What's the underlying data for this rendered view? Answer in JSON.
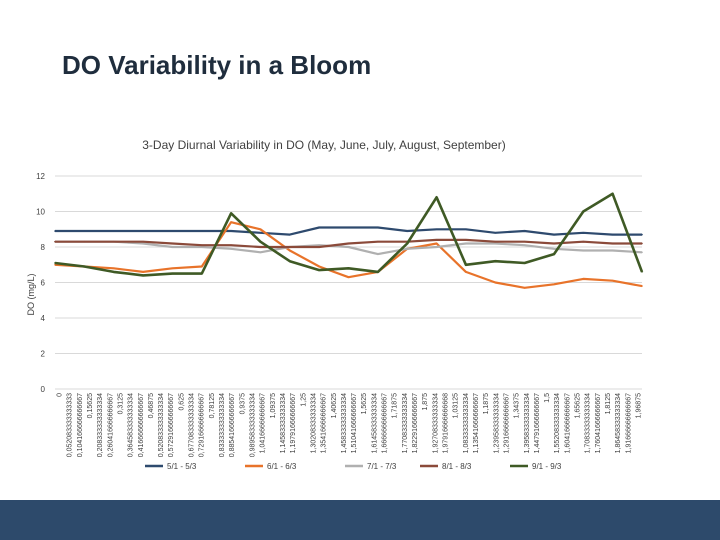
{
  "slide": {
    "title": "DO Variability in a Bloom"
  },
  "chart_data": {
    "type": "line",
    "title": "3-Day Diurnal Variability in DO (May, June, July, August, September)",
    "ylabel": "DO (mg/L)",
    "xlabel": "",
    "ylim": [
      0,
      12
    ],
    "yticks": [
      0,
      2,
      4,
      6,
      8,
      10,
      12
    ],
    "grid": true,
    "x_range": [
      0,
      2
    ],
    "x_tick_labels": [
      "0",
      "0,052083333333333",
      "0,104166666666667",
      "0,15625",
      "0,208333333333334",
      "0,260416666666667",
      "0,3125",
      "0,364583333333334",
      "0,416666666666667",
      "0,46875",
      "0,520833333333334",
      "0,572916666666667",
      "0,625",
      "0,677083333333334",
      "0,729166666666667",
      "0,78125",
      "0,833333333333334",
      "0,885416666666667",
      "0,9375",
      "0,989583333333334",
      "1,04166666666667",
      "1,09375",
      "1,14583333333334",
      "1,19791666666667",
      "1,25",
      "1,30208333333334",
      "1,35416666666667",
      "1,40625",
      "1,45833333333334",
      "1,51041666666667",
      "1,5625",
      "1,61458333333334",
      "1,66666666666667",
      "1,71875",
      "1,77083333333334",
      "1,82291666666667",
      "1,875",
      "1,92708333333334",
      "1,97916666666668",
      "1,03125",
      "1,08333333333334",
      "1,13541666666667",
      "1,1875",
      "1,23958333333334",
      "1,29166666666667",
      "1,34375",
      "1,39583333333334",
      "1,44791666666667",
      "1,5",
      "1,55208333333334",
      "1,60416666666667",
      "1,65625",
      "1,70833333333334",
      "1,76041666666667",
      "1,8125",
      "1,86458333333334",
      "1,91666666666667",
      "1,96875"
    ],
    "x": [
      0,
      0.1,
      0.2,
      0.3,
      0.4,
      0.5,
      0.6,
      0.7,
      0.8,
      0.9,
      1.0,
      1.1,
      1.2,
      1.3,
      1.4,
      1.5,
      1.6,
      1.7,
      1.8,
      1.9,
      2.0
    ],
    "series": [
      {
        "name": "5/1 - 5/3",
        "color": "#2e4a6e",
        "values": [
          8.9,
          8.9,
          8.9,
          8.9,
          8.9,
          8.9,
          8.9,
          8.8,
          8.7,
          9.1,
          9.1,
          9.1,
          8.9,
          9.0,
          9.0,
          8.8,
          8.9,
          8.7,
          8.8,
          8.7,
          8.7
        ]
      },
      {
        "name": "6/1 - 6/3",
        "color": "#e8732a",
        "values": [
          7.0,
          6.9,
          6.8,
          6.6,
          6.8,
          6.9,
          9.4,
          9.0,
          7.8,
          6.9,
          6.3,
          6.6,
          7.9,
          8.2,
          6.6,
          6.0,
          5.7,
          5.9,
          6.2,
          6.1,
          5.8
        ]
      },
      {
        "name": "7/1 - 7/3",
        "color": "#b0b0b0",
        "values": [
          8.3,
          8.3,
          8.3,
          8.2,
          8.0,
          8.0,
          7.9,
          7.7,
          8.0,
          8.1,
          8.0,
          7.6,
          7.9,
          8.0,
          8.2,
          8.2,
          8.1,
          7.9,
          7.8,
          7.8,
          7.7
        ]
      },
      {
        "name": "8/1 - 8/3",
        "color": "#8b4a3a",
        "values": [
          8.3,
          8.3,
          8.3,
          8.3,
          8.2,
          8.1,
          8.1,
          8.0,
          8.0,
          8.0,
          8.2,
          8.3,
          8.3,
          8.4,
          8.4,
          8.3,
          8.3,
          8.2,
          8.3,
          8.2,
          8.2
        ]
      },
      {
        "name": "9/1 - 9/3",
        "color": "#3f5a25",
        "values": [
          7.1,
          6.9,
          6.6,
          6.4,
          6.5,
          6.5,
          9.9,
          8.3,
          7.2,
          6.7,
          6.8,
          6.6,
          8.2,
          10.8,
          7.0,
          7.2,
          7.1,
          7.6,
          10.0,
          11.0,
          6.6
        ]
      }
    ]
  }
}
